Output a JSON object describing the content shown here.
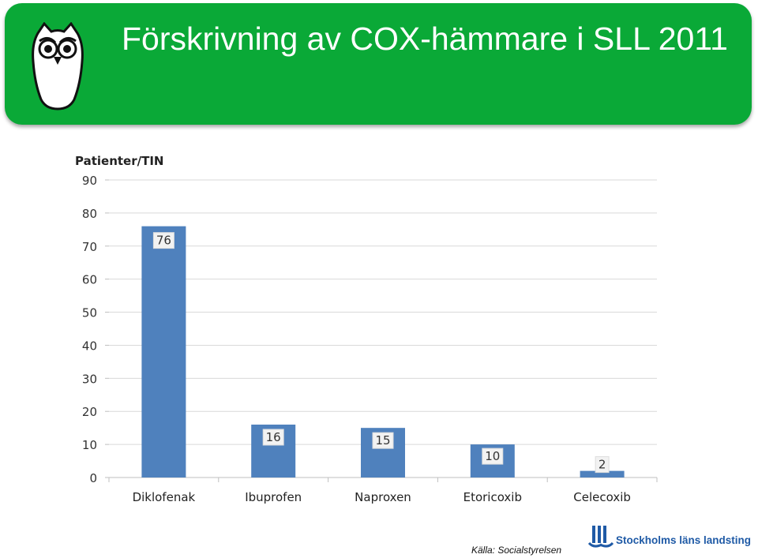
{
  "header": {
    "title": "Förskrivning av COX-hämmare i SLL 2011",
    "logo_icon": "owl-icon",
    "background_color": "#0aa937"
  },
  "chart_data": {
    "type": "bar",
    "title": "",
    "ylabel": "Patienter/TIN",
    "xlabel": "",
    "categories": [
      "Diklofenak",
      "Ibuprofen",
      "Naproxen",
      "Etoricoxib",
      "Celecoxib"
    ],
    "values": [
      76,
      16,
      15,
      10,
      2
    ],
    "data_labels": [
      "76",
      "16",
      "15",
      "10",
      "2"
    ],
    "y_ticks": [
      "0",
      "10",
      "20",
      "30",
      "40",
      "50",
      "60",
      "70",
      "80",
      "90"
    ],
    "ylim": [
      0,
      90
    ],
    "bar_color": "#4f81bd",
    "grid": true,
    "legend": "none"
  },
  "footer": {
    "source": "Källa: Socialstyrelsen",
    "org_name": "Stockholms läns landsting",
    "org_logo_icon": "sll-logo-icon",
    "org_color": "#1f5aa6"
  }
}
